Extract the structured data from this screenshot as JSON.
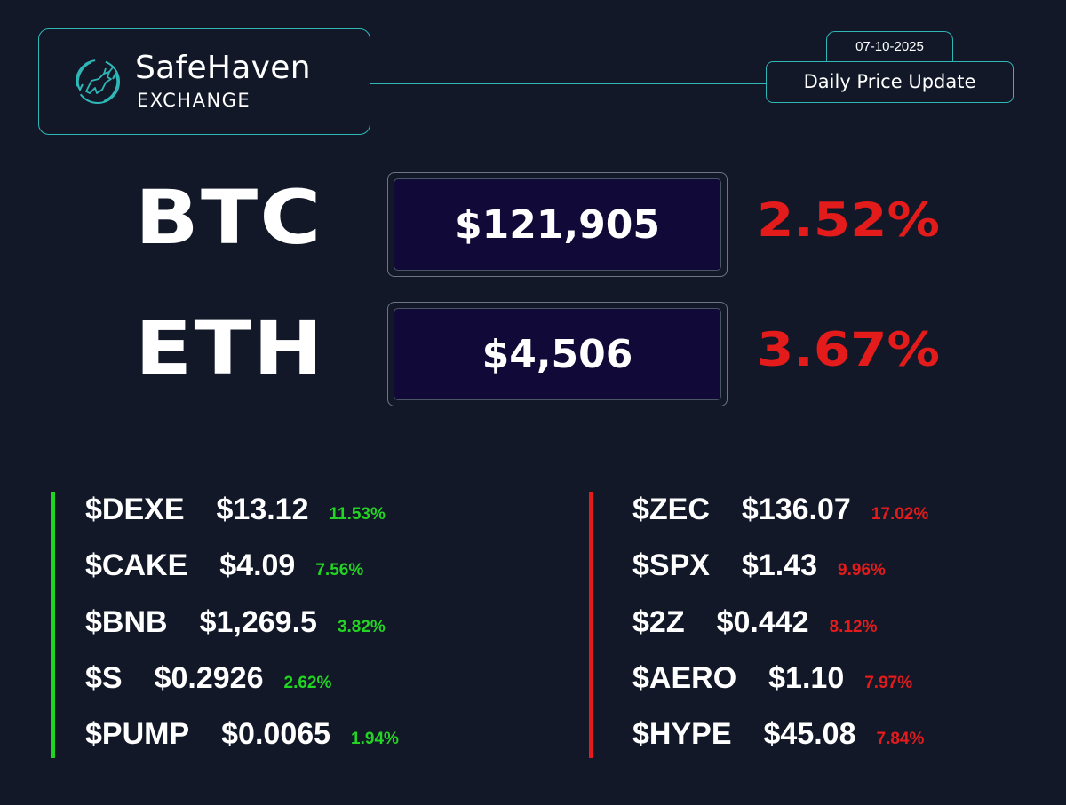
{
  "brand": {
    "name": "SafeHaven",
    "sub": "EXCHANGE",
    "accent": "#2fb7b7"
  },
  "header": {
    "date": "07-10-2025",
    "title": "Daily Price Update"
  },
  "main": [
    {
      "symbol": "BTC",
      "price": "$121,905",
      "change": "2.52%"
    },
    {
      "symbol": "ETH",
      "price": "$4,506",
      "change": "3.67%"
    }
  ],
  "gainers": [
    {
      "symbol": "$DEXE",
      "price": "$13.12",
      "change": "11.53%"
    },
    {
      "symbol": "$CAKE",
      "price": "$4.09",
      "change": "7.56%"
    },
    {
      "symbol": "$BNB",
      "price": "$1,269.5",
      "change": "3.82%"
    },
    {
      "symbol": "$S",
      "price": "$0.2926",
      "change": "2.62%"
    },
    {
      "symbol": "$PUMP",
      "price": "$0.0065",
      "change": "1.94%"
    }
  ],
  "losers": [
    {
      "symbol": "$ZEC",
      "price": "$136.07",
      "change": "17.02%"
    },
    {
      "symbol": "$SPX",
      "price": "$1.43",
      "change": "9.96%"
    },
    {
      "symbol": "$2Z",
      "price": "$0.442",
      "change": "8.12%"
    },
    {
      "symbol": "$AERO",
      "price": "$1.10",
      "change": "7.97%"
    },
    {
      "symbol": "$HYPE",
      "price": "$45.08",
      "change": "7.84%"
    }
  ],
  "colors": {
    "background": "#121828",
    "gain": "#22d522",
    "loss": "#e31b1b",
    "price_box": "#110a38"
  },
  "icons": [
    "bull-logo-icon"
  ]
}
